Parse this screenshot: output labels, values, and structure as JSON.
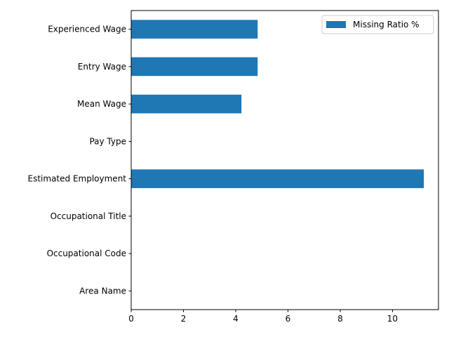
{
  "chart_data": {
    "type": "bar",
    "orientation": "horizontal",
    "categories": [
      "Area Name",
      "Occupational Code",
      "Occupational Title",
      "Estimated Employment",
      "Pay Type",
      "Mean Wage",
      "Entry Wage",
      "Experienced Wage"
    ],
    "series": [
      {
        "name": "Missing Ratio %",
        "color": "#1f77b4",
        "values": [
          0,
          0,
          0,
          11.2,
          0,
          4.22,
          4.84,
          4.84
        ]
      }
    ],
    "title": "",
    "xlabel": "",
    "ylabel": "",
    "xlim": [
      0,
      11.76
    ],
    "xticks": [
      0,
      2,
      4,
      6,
      8,
      10
    ],
    "grid": false,
    "legend_position": "top-right"
  }
}
